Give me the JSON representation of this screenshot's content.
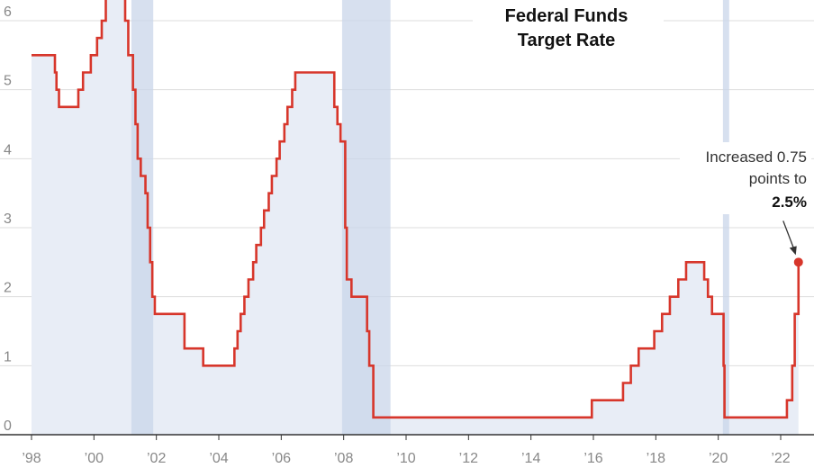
{
  "chart_data": {
    "type": "line",
    "title_lines": [
      "Federal Funds",
      "Target Rate"
    ],
    "xlabel": "",
    "ylabel": "",
    "xlim": [
      1998.0,
      2022.75
    ],
    "ylim": [
      0,
      6.3
    ],
    "y_ticks": [
      0,
      1,
      2,
      3,
      4,
      5,
      6
    ],
    "y_tick_labels": [
      "0",
      "1",
      "2",
      "3",
      "4",
      "5",
      "6"
    ],
    "x_ticks": [
      1998,
      2000,
      2002,
      2004,
      2006,
      2008,
      2010,
      2012,
      2014,
      2016,
      2018,
      2020,
      2022
    ],
    "x_tick_labels": [
      "’98",
      "’00",
      "’02",
      "’04",
      "’06",
      "’08",
      "’10",
      "’12",
      "’14",
      "’16",
      "’18",
      "’20",
      "’22"
    ],
    "grid": true,
    "colors": {
      "line": "#d7362b",
      "area": "#e8edf6",
      "recession": "#c9d6ea",
      "grid": "#dddddd",
      "axis": "#333333"
    },
    "recessions": [
      [
        2001.2,
        2001.9
      ],
      [
        2007.95,
        2009.5
      ],
      [
        2020.15,
        2020.35
      ]
    ],
    "series": [
      {
        "name": "",
        "step": true,
        "points": [
          [
            1998.0,
            5.5
          ],
          [
            1998.75,
            5.25
          ],
          [
            1998.8,
            5.0
          ],
          [
            1998.88,
            4.75
          ],
          [
            1999.5,
            5.0
          ],
          [
            1999.65,
            5.25
          ],
          [
            1999.9,
            5.5
          ],
          [
            2000.1,
            5.75
          ],
          [
            2000.25,
            6.0
          ],
          [
            2000.38,
            6.5
          ],
          [
            2001.0,
            6.0
          ],
          [
            2001.1,
            5.5
          ],
          [
            2001.25,
            5.0
          ],
          [
            2001.33,
            4.5
          ],
          [
            2001.4,
            4.0
          ],
          [
            2001.5,
            3.75
          ],
          [
            2001.65,
            3.5
          ],
          [
            2001.72,
            3.0
          ],
          [
            2001.8,
            2.5
          ],
          [
            2001.87,
            2.0
          ],
          [
            2001.95,
            1.75
          ],
          [
            2002.9,
            1.25
          ],
          [
            2003.5,
            1.0
          ],
          [
            2004.5,
            1.25
          ],
          [
            2004.6,
            1.5
          ],
          [
            2004.7,
            1.75
          ],
          [
            2004.82,
            2.0
          ],
          [
            2004.95,
            2.25
          ],
          [
            2005.1,
            2.5
          ],
          [
            2005.2,
            2.75
          ],
          [
            2005.35,
            3.0
          ],
          [
            2005.45,
            3.25
          ],
          [
            2005.6,
            3.5
          ],
          [
            2005.7,
            3.75
          ],
          [
            2005.85,
            4.0
          ],
          [
            2005.95,
            4.25
          ],
          [
            2006.1,
            4.5
          ],
          [
            2006.2,
            4.75
          ],
          [
            2006.35,
            5.0
          ],
          [
            2006.45,
            5.25
          ],
          [
            2007.7,
            4.75
          ],
          [
            2007.8,
            4.5
          ],
          [
            2007.9,
            4.25
          ],
          [
            2008.05,
            3.0
          ],
          [
            2008.1,
            2.25
          ],
          [
            2008.25,
            2.0
          ],
          [
            2008.75,
            1.5
          ],
          [
            2008.82,
            1.0
          ],
          [
            2008.95,
            0.25
          ],
          [
            2015.95,
            0.5
          ],
          [
            2016.95,
            0.75
          ],
          [
            2017.2,
            1.0
          ],
          [
            2017.45,
            1.25
          ],
          [
            2017.95,
            1.5
          ],
          [
            2018.2,
            1.75
          ],
          [
            2018.45,
            2.0
          ],
          [
            2018.72,
            2.25
          ],
          [
            2018.97,
            2.5
          ],
          [
            2019.55,
            2.25
          ],
          [
            2019.67,
            2.0
          ],
          [
            2019.8,
            1.75
          ],
          [
            2020.17,
            1.0
          ],
          [
            2020.2,
            0.25
          ],
          [
            2022.2,
            0.5
          ],
          [
            2022.37,
            1.0
          ],
          [
            2022.45,
            1.75
          ],
          [
            2022.57,
            2.5
          ]
        ]
      }
    ],
    "annotation": {
      "line1": "Increased 0.75",
      "line2": "points to",
      "value": "2.5%",
      "point": [
        2022.57,
        2.5
      ]
    }
  }
}
